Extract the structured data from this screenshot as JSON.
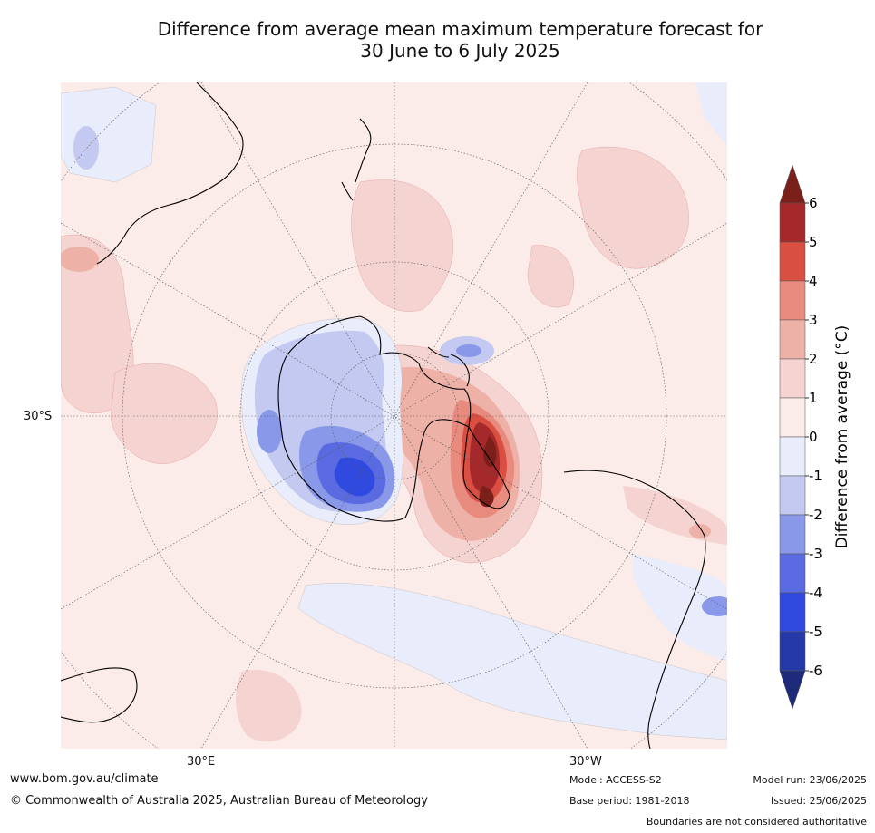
{
  "title": {
    "line1": "Difference from average mean maximum temperature forecast for",
    "line2": "30 June to 6 July 2025"
  },
  "map": {
    "projection": "south-polar-stereographic",
    "lat_label": "30°S",
    "lon_labels": [
      "30°E",
      "30°W"
    ]
  },
  "colorbar": {
    "label": "Difference from average (°C)",
    "ticks": [
      "6",
      "5",
      "4",
      "3",
      "2",
      "1",
      "0",
      "-1",
      "-2",
      "-3",
      "-4",
      "-5",
      "-6"
    ],
    "colors": [
      "#7b1f1a",
      "#a5282a",
      "#d94f41",
      "#e98a7e",
      "#edb1a8",
      "#f5d3d0",
      "#fbebe9",
      "#e9ecfa",
      "#c3c9f0",
      "#8a98ea",
      "#5a6be2",
      "#3049de",
      "#253aa8",
      "#1e2b7a"
    ]
  },
  "footer": {
    "website": "www.bom.gov.au/climate",
    "copyright": "© Commonwealth of Australia 2025, Australian Bureau of Meteorology",
    "model": "Model: ACCESS-S2",
    "base_period": "Base period: 1981-2018",
    "model_run": "Model run: 23/06/2025",
    "issued": "Issued: 25/06/2025",
    "disclaimer": "Boundaries are not considered authoritative"
  }
}
